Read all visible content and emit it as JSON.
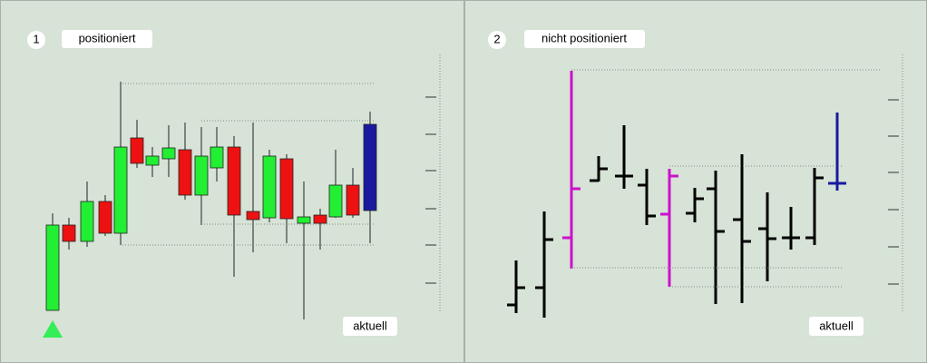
{
  "panels": [
    {
      "number": "1",
      "label": "positioniert",
      "current": "aktuell"
    },
    {
      "number": "2",
      "label": "nicht positioniert",
      "current": "aktuell"
    }
  ]
}
